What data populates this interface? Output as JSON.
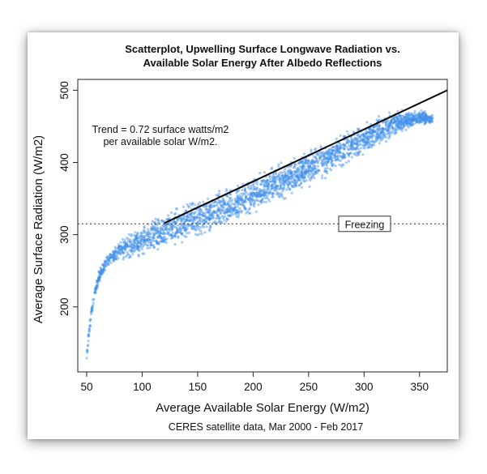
{
  "chart_data": {
    "type": "scatter",
    "title_line1": "Scatterplot, Upwelling Surface Longwave Radiation vs.",
    "title_line2": "Available Solar Energy After Albedo Reflections",
    "xlabel": "Average Available Solar Energy (W/m2)",
    "ylabel": "Average Surface Radiation (W/m2)",
    "caption": "CERES satellite data, Mar 2000 - Feb 2017",
    "xlim": [
      42,
      375
    ],
    "ylim": [
      110,
      515
    ],
    "x_ticks": [
      50,
      100,
      150,
      200,
      250,
      300,
      350
    ],
    "y_ticks": [
      200,
      300,
      400,
      500
    ],
    "grid": false,
    "point_color": "#3d8fe8",
    "trend": {
      "line1": "Trend = 0.72 surface watts/m2",
      "line2": "per available solar W/m2.",
      "x": [
        120,
        375
      ],
      "y": [
        316,
        500
      ],
      "color": "#000000"
    },
    "reference_line": {
      "y": 315,
      "label": "Freezing",
      "style": "dotted"
    },
    "point_cloud": {
      "centerline": [
        [
          50,
          128
        ],
        [
          52,
          165
        ],
        [
          55,
          200
        ],
        [
          58,
          225
        ],
        [
          62,
          245
        ],
        [
          68,
          262
        ],
        [
          75,
          272
        ],
        [
          85,
          282
        ],
        [
          100,
          292
        ],
        [
          115,
          302
        ],
        [
          130,
          312
        ],
        [
          150,
          322
        ],
        [
          170,
          333
        ],
        [
          190,
          347
        ],
        [
          210,
          362
        ],
        [
          230,
          377
        ],
        [
          250,
          392
        ],
        [
          270,
          408
        ],
        [
          290,
          425
        ],
        [
          310,
          442
        ],
        [
          330,
          456
        ],
        [
          350,
          462
        ],
        [
          362,
          460
        ]
      ],
      "halfwidth": [
        6,
        8,
        10,
        10,
        12,
        14,
        16,
        20,
        26,
        30,
        32,
        32,
        32,
        32,
        30,
        30,
        30,
        30,
        28,
        26,
        20,
        14,
        8
      ]
    }
  }
}
